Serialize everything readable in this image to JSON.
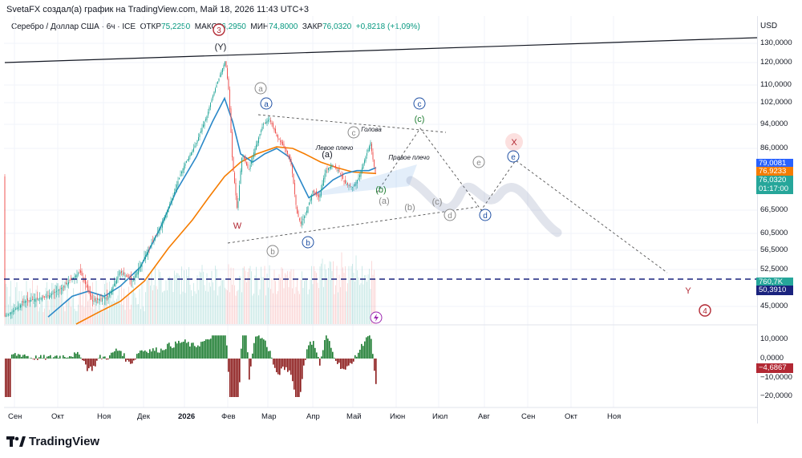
{
  "header": {
    "attribution": "SvetaFX создал(а) график на TradingView.com, Май 18, 2026 11:43 UTC+3"
  },
  "legend": {
    "symbol": "Серебро / Доллар США · 6ч · ICE",
    "open_label": "ОТКР",
    "open": "75,2250",
    "high_label": "МАКС",
    "high": "76,2950",
    "low_label": "МИН",
    "low": "74,8000",
    "close_label": "ЗАКР",
    "close": "76,0320",
    "change": "+0,8218 (+1,09%)"
  },
  "price_axis": {
    "currency": "USD",
    "ticks": [
      "130,0000",
      "120,0000",
      "110,0000",
      "102,0000",
      "94,0000",
      "86,0000",
      "66,5000",
      "60,5000",
      "56,5000",
      "52,5000",
      "45,0000"
    ],
    "tags": [
      {
        "text": "79,0081",
        "color": "#2962ff"
      },
      {
        "text": "76,9233",
        "color": "#f57c00"
      },
      {
        "text": "76,0320",
        "color": "#26a69a"
      },
      {
        "text": "01:17:00",
        "color": "#26a69a"
      },
      {
        "text": "760,7K",
        "color": "#26a69a"
      },
      {
        "text": "50,3910",
        "color": "#1a237e"
      }
    ]
  },
  "osc_axis": {
    "ticks": [
      "10,0000",
      "0,0000",
      "−10,0000",
      "−20,0000"
    ],
    "value_tag": {
      "text": "−4,6867",
      "color": "#b22833"
    }
  },
  "time_axis": {
    "months": [
      "Сен",
      "Окт",
      "Ноя",
      "Дек",
      "2026",
      "Фев",
      "Мар",
      "Апр",
      "Май",
      "Июн",
      "Июл",
      "Авг",
      "Сен",
      "Окт",
      "Ноя"
    ]
  },
  "annotations": {
    "wave_labels": [
      "3",
      "(Y)",
      "W",
      "a",
      "a",
      "b",
      "b",
      "c",
      "c",
      "(c)",
      "(a)",
      "(b)",
      "(a)",
      "(b)",
      "(c)",
      "d",
      "d",
      "e",
      "e",
      "X",
      "Y",
      "4"
    ],
    "texts": {
      "golova": "Голова",
      "left_shoulder": "Левое плечо",
      "right_shoulder": "Правое плечо"
    }
  },
  "footer": {
    "brand": "TradingView"
  },
  "chart_data": {
    "type": "candlestick",
    "title": "Серебро / Доллар США · 6ч · ICE",
    "x": [
      "2025-09",
      "2025-10",
      "2025-11",
      "2025-12",
      "2026-01",
      "2026-01-29",
      "2026-02",
      "2026-03",
      "2026-03-18",
      "2026-04",
      "2026-05",
      "2026-05-18"
    ],
    "close_approx": [
      42,
      49,
      50,
      62,
      92,
      121,
      80,
      95,
      63,
      75,
      88,
      76.03
    ],
    "series": [
      {
        "name": "Price (approx. closes)",
        "values": [
          42,
          49,
          50,
          62,
          92,
          121,
          80,
          95,
          63,
          75,
          88,
          76.03
        ]
      },
      {
        "name": "MA (blue)",
        "last": 79.0081
      },
      {
        "name": "MA (orange)",
        "last": 76.9233
      },
      {
        "name": "Volume",
        "last": "760,7K"
      },
      {
        "name": "Oscillator",
        "last": -4.6867
      }
    ],
    "ylim": [
      40,
      135
    ],
    "levels": {
      "horizontal_dashed": 50.391
    },
    "projection": [
      {
        "label": "(c)",
        "value": 92
      },
      {
        "label": "d",
        "value": 67
      },
      {
        "label": "e",
        "value": 80
      },
      {
        "label": "Y",
        "value": 50.4
      }
    ]
  }
}
